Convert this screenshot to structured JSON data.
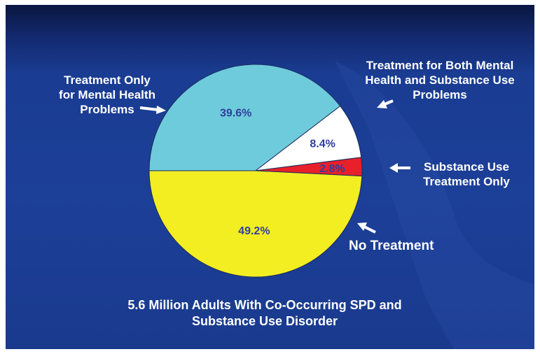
{
  "chart_data": {
    "type": "pie",
    "title": "5.6 Million Adults With Co-Occurring SPD and\nSubstance Use Disorder",
    "slices": [
      {
        "label": "Treatment Only\nfor Mental Health\nProblems",
        "value": 39.6,
        "display": "39.6%",
        "color": "#6ecbdc"
      },
      {
        "label": "Treatment for Both Mental\nHealth and Substance Use\nProblems",
        "value": 8.4,
        "display": "8.4%",
        "color": "#ffffff"
      },
      {
        "label": "Substance Use\nTreatment Only",
        "value": 2.8,
        "display": "2.8%",
        "color": "#e8202a"
      },
      {
        "label": "No Treatment",
        "value": 49.2,
        "display": "49.2%",
        "color": "#f2ee22"
      }
    ],
    "colors": {
      "background": "#1c3f98",
      "text": "#ffffff",
      "percent_text": "#2f3f9c"
    }
  }
}
